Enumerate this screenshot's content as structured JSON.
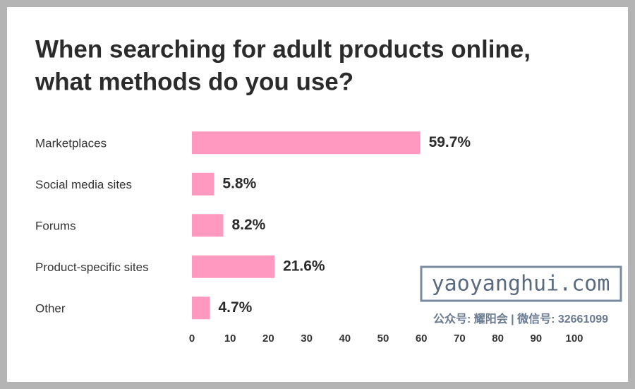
{
  "chart_data": {
    "type": "hbar",
    "title": [
      "When searching for adult products online,",
      "what methods do you use?"
    ],
    "categories": [
      "Marketplaces",
      "Social media sites",
      "Forums",
      "Product-specific sites",
      "Other"
    ],
    "values": [
      59.7,
      5.8,
      8.2,
      21.6,
      4.7
    ],
    "value_labels": [
      "59.7%",
      "5.8%",
      "8.2%",
      "21.6%",
      "4.7%"
    ],
    "color": "#ff99bf",
    "xlim": [
      0,
      100
    ],
    "xticks": [
      0,
      10,
      20,
      30,
      40,
      50,
      60,
      70,
      80,
      90,
      100
    ],
    "grid": false,
    "watermark": {
      "site": "yaoyanghui.com",
      "account": "公众号: 耀阳会 | 微信号: 32661099"
    }
  }
}
